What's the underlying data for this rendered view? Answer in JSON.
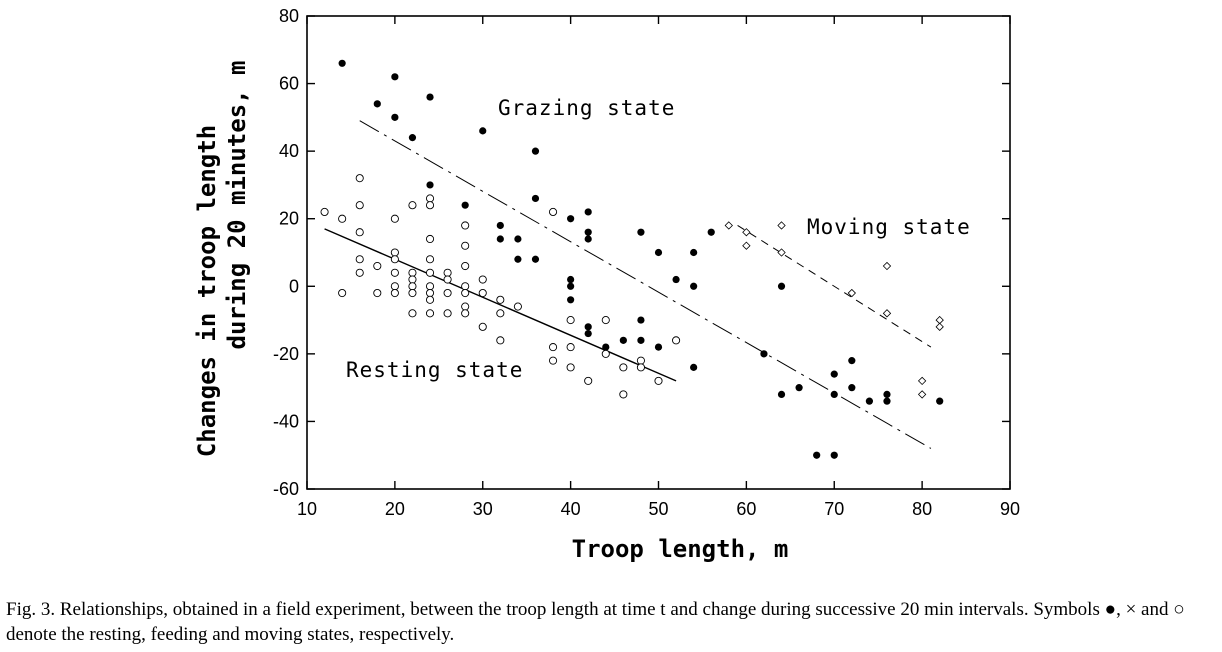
{
  "chart_data": {
    "type": "scatter",
    "title": "",
    "xlabel": "Troop length,  m",
    "ylabel_line1": "Changes in troop length",
    "ylabel_line2": "during 20 minutes,  m",
    "xlim": [
      10,
      90
    ],
    "ylim": [
      -60,
      80
    ],
    "xticks": [
      10,
      20,
      30,
      40,
      50,
      60,
      70,
      80,
      90
    ],
    "yticks": [
      -60,
      -40,
      -20,
      0,
      20,
      40,
      60,
      80
    ],
    "grid": false,
    "annotations": [
      "Grazing state",
      "Moving state",
      "Resting state"
    ],
    "series": [
      {
        "marker": "filled-circle",
        "points": [
          [
            14,
            66
          ],
          [
            18,
            54
          ],
          [
            20,
            62
          ],
          [
            20,
            50
          ],
          [
            22,
            44
          ],
          [
            24,
            56
          ],
          [
            24,
            30
          ],
          [
            28,
            24
          ],
          [
            28,
            18
          ],
          [
            30,
            46
          ],
          [
            32,
            18
          ],
          [
            32,
            14
          ],
          [
            34,
            14
          ],
          [
            34,
            8
          ],
          [
            36,
            40
          ],
          [
            36,
            26
          ],
          [
            36,
            8
          ],
          [
            40,
            20
          ],
          [
            40,
            2
          ],
          [
            40,
            0
          ],
          [
            40,
            -4
          ],
          [
            42,
            22
          ],
          [
            42,
            16
          ],
          [
            42,
            14
          ],
          [
            42,
            -12
          ],
          [
            42,
            -14
          ],
          [
            44,
            -18
          ],
          [
            46,
            -16
          ],
          [
            48,
            16
          ],
          [
            48,
            -10
          ],
          [
            48,
            -16
          ],
          [
            50,
            10
          ],
          [
            50,
            -18
          ],
          [
            52,
            2
          ],
          [
            54,
            10
          ],
          [
            54,
            0
          ],
          [
            54,
            -24
          ],
          [
            56,
            16
          ],
          [
            62,
            -20
          ],
          [
            64,
            0
          ],
          [
            64,
            -32
          ],
          [
            66,
            -30
          ],
          [
            68,
            -50
          ],
          [
            70,
            -26
          ],
          [
            70,
            -32
          ],
          [
            70,
            -50
          ],
          [
            72,
            -22
          ],
          [
            72,
            -30
          ],
          [
            74,
            -34
          ],
          [
            76,
            -32
          ],
          [
            76,
            -34
          ],
          [
            82,
            -34
          ]
        ]
      },
      {
        "marker": "open-circle",
        "points": [
          [
            12,
            22
          ],
          [
            14,
            20
          ],
          [
            14,
            -2
          ],
          [
            16,
            32
          ],
          [
            16,
            24
          ],
          [
            16,
            16
          ],
          [
            16,
            8
          ],
          [
            16,
            4
          ],
          [
            18,
            6
          ],
          [
            18,
            -2
          ],
          [
            20,
            20
          ],
          [
            20,
            10
          ],
          [
            20,
            8
          ],
          [
            20,
            4
          ],
          [
            20,
            0
          ],
          [
            20,
            -2
          ],
          [
            22,
            24
          ],
          [
            22,
            4
          ],
          [
            22,
            2
          ],
          [
            22,
            0
          ],
          [
            22,
            -2
          ],
          [
            22,
            -8
          ],
          [
            24,
            26
          ],
          [
            24,
            24
          ],
          [
            24,
            14
          ],
          [
            24,
            8
          ],
          [
            24,
            4
          ],
          [
            24,
            0
          ],
          [
            24,
            -2
          ],
          [
            24,
            -4
          ],
          [
            24,
            -8
          ],
          [
            26,
            4
          ],
          [
            26,
            2
          ],
          [
            26,
            -2
          ],
          [
            26,
            -8
          ],
          [
            28,
            18
          ],
          [
            28,
            12
          ],
          [
            28,
            6
          ],
          [
            28,
            0
          ],
          [
            28,
            -2
          ],
          [
            28,
            -6
          ],
          [
            28,
            -8
          ],
          [
            30,
            2
          ],
          [
            30,
            -2
          ],
          [
            30,
            -12
          ],
          [
            32,
            -4
          ],
          [
            32,
            -8
          ],
          [
            32,
            -16
          ],
          [
            34,
            -6
          ],
          [
            38,
            22
          ],
          [
            38,
            -18
          ],
          [
            38,
            -22
          ],
          [
            40,
            -10
          ],
          [
            40,
            -18
          ],
          [
            40,
            -24
          ],
          [
            42,
            -28
          ],
          [
            44,
            -10
          ],
          [
            44,
            -20
          ],
          [
            46,
            -24
          ],
          [
            46,
            -32
          ],
          [
            48,
            -22
          ],
          [
            48,
            -24
          ],
          [
            50,
            -28
          ],
          [
            52,
            -16
          ]
        ]
      },
      {
        "marker": "open-diamond",
        "points": [
          [
            58,
            18
          ],
          [
            60,
            16
          ],
          [
            60,
            12
          ],
          [
            64,
            18
          ],
          [
            64,
            10
          ],
          [
            72,
            -2
          ],
          [
            76,
            6
          ],
          [
            76,
            -8
          ],
          [
            80,
            -28
          ],
          [
            80,
            -32
          ],
          [
            82,
            -10
          ],
          [
            82,
            -12
          ]
        ]
      }
    ],
    "lines": [
      {
        "style": "solid",
        "from": [
          12,
          17
        ],
        "to": [
          52,
          -28
        ]
      },
      {
        "style": "long-dash",
        "from": [
          16,
          49
        ],
        "to": [
          81,
          -48
        ]
      },
      {
        "style": "short-dash",
        "from": [
          59,
          18
        ],
        "to": [
          81,
          -18
        ]
      }
    ]
  },
  "caption": "Fig. 3. Relationships, obtained in a field experiment, between the troop length at time t and change during successive 20 min intervals. Symbols ●, × and ○ denote the resting, feeding and moving states, respectively."
}
